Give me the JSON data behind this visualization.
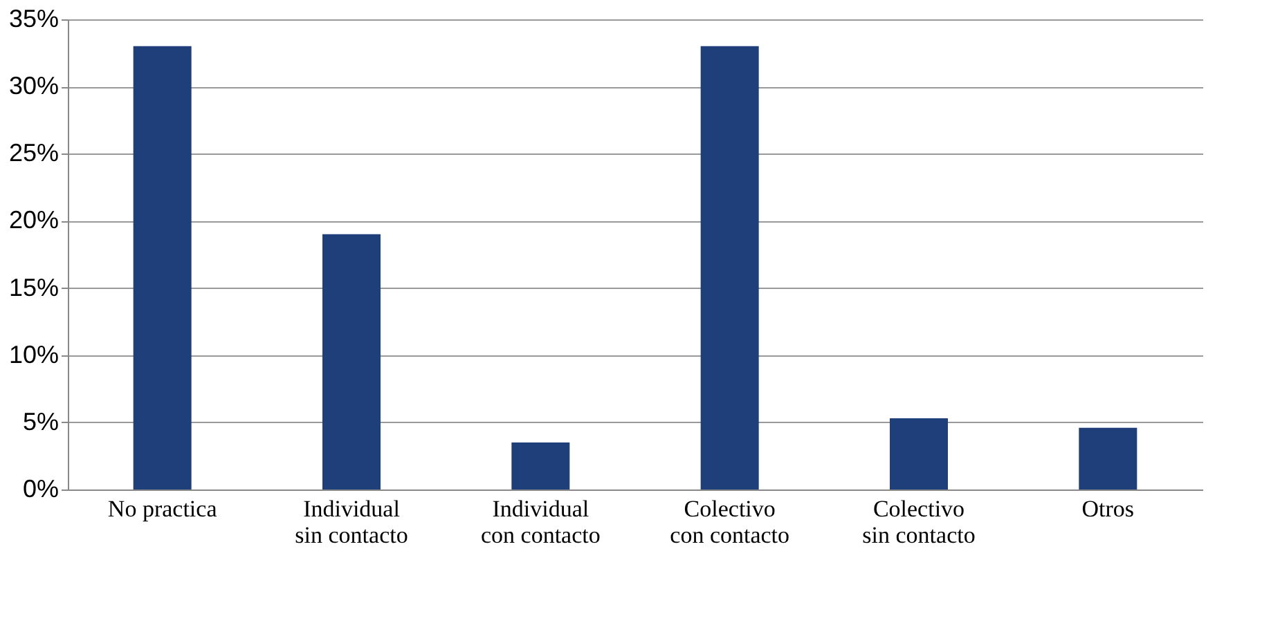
{
  "chart_data": {
    "type": "bar",
    "categories": [
      "No practica",
      "Individual\nsin contacto",
      "Individual\ncon contacto",
      "Colectivo\ncon contacto",
      "Colectivo\nsin contacto",
      "Otros"
    ],
    "values": [
      33,
      19,
      3.5,
      33,
      5.3,
      4.6
    ],
    "color": "#1f3f7a",
    "ylim": [
      0,
      35
    ],
    "yticks": [
      {
        "value": 0,
        "label": "0%"
      },
      {
        "value": 5,
        "label": "5%"
      },
      {
        "value": 10,
        "label": "10%"
      },
      {
        "value": 15,
        "label": "15%"
      },
      {
        "value": 20,
        "label": "20%"
      },
      {
        "value": 25,
        "label": "25%"
      },
      {
        "value": 30,
        "label": "30%"
      },
      {
        "value": 35,
        "label": "35%"
      }
    ],
    "grid": "y"
  }
}
